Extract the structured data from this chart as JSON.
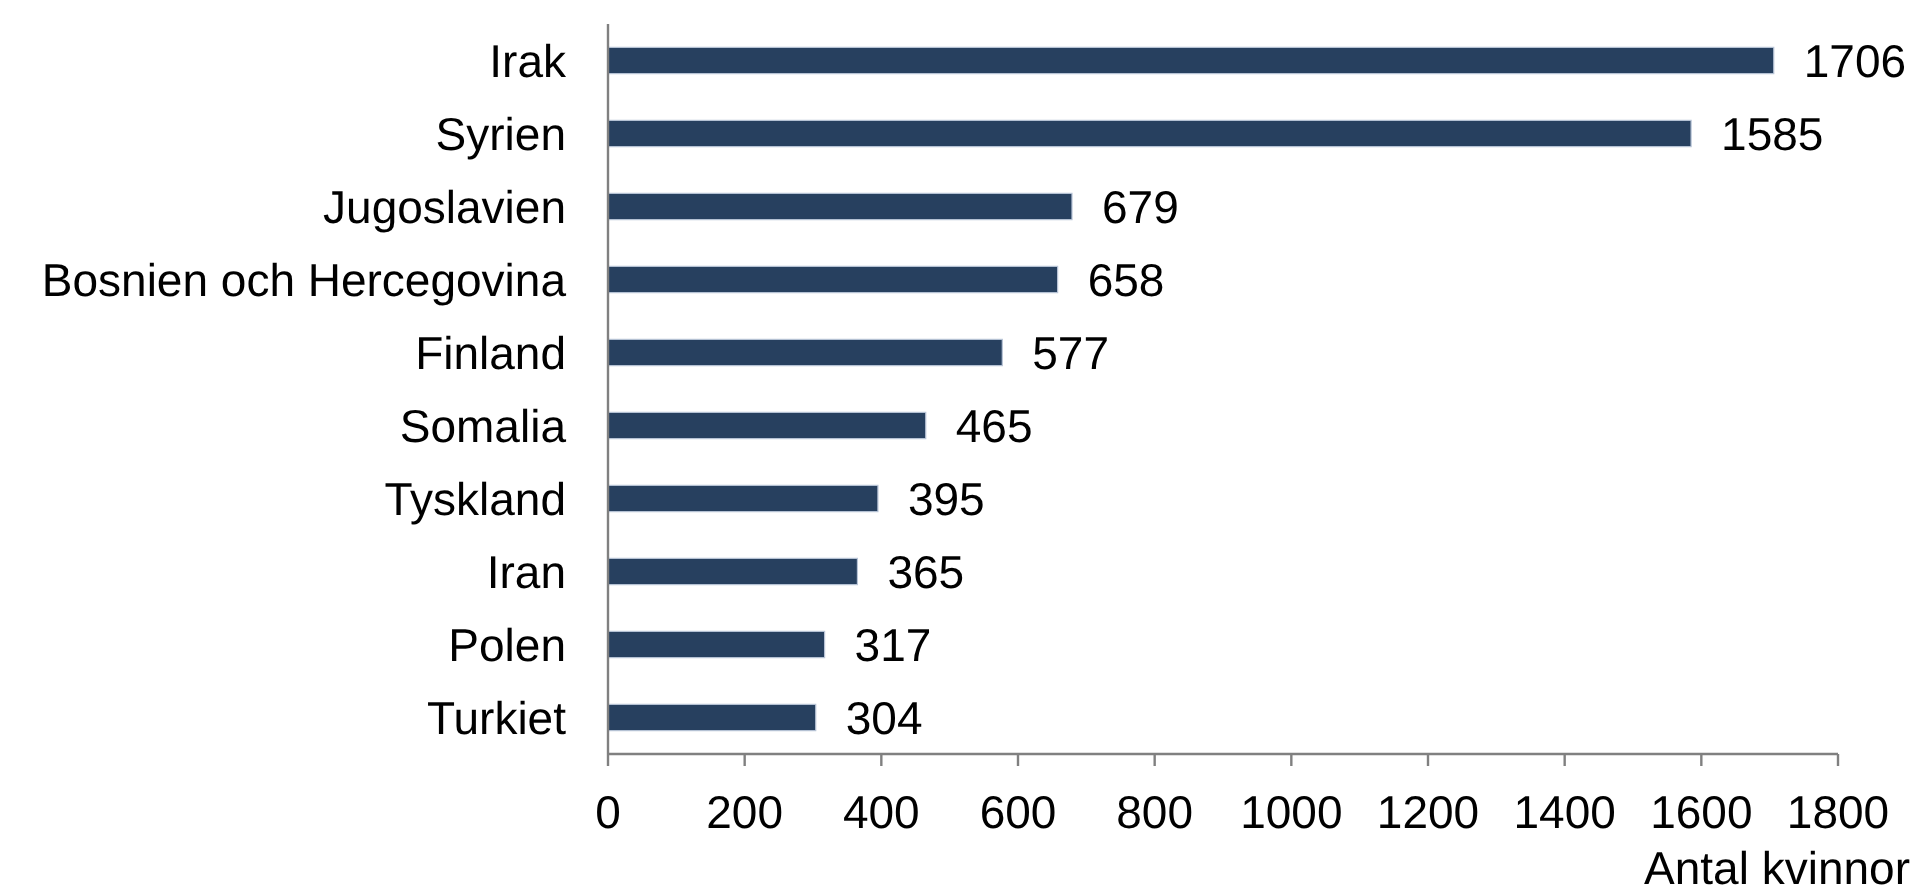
{
  "chart_data": {
    "type": "bar",
    "orientation": "horizontal",
    "categories": [
      "Irak",
      "Syrien",
      "Jugoslavien",
      "Bosnien och Hercegovina",
      "Finland",
      "Somalia",
      "Tyskland",
      "Iran",
      "Polen",
      "Turkiet"
    ],
    "values": [
      1706,
      1585,
      679,
      658,
      577,
      465,
      395,
      365,
      317,
      304
    ],
    "color": "#27405f",
    "xlabel": "Antal kvinnor",
    "xlim": [
      0,
      1800
    ],
    "xticks": [
      0,
      200,
      400,
      600,
      800,
      1000,
      1200,
      1400,
      1600,
      1800
    ],
    "data_labels": true
  }
}
